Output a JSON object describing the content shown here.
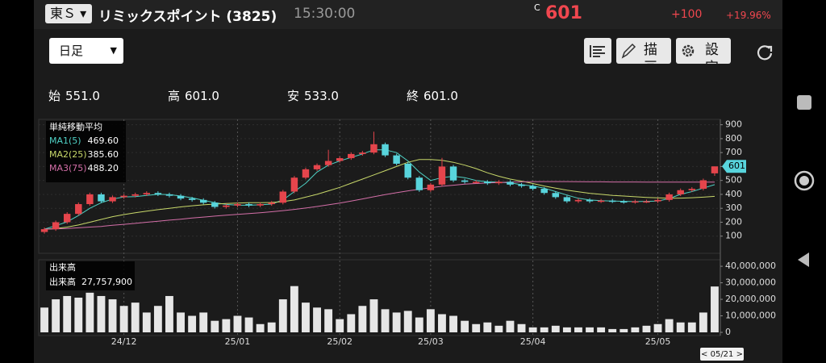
{
  "header": {
    "exchange": "東Ｓ",
    "title": "リミックスポイント (3825)",
    "time": "15:30:00",
    "price_flag": "C",
    "price": "601",
    "change": "+100",
    "change_pct": "+19.96%"
  },
  "toolbar": {
    "period": "日足",
    "draw": "描画",
    "settings": "設定"
  },
  "ohlc": [
    {
      "label": "始",
      "value": "551.0"
    },
    {
      "label": "高",
      "value": "601.0"
    },
    {
      "label": "安",
      "value": "533.0"
    },
    {
      "label": "終",
      "value": "601.0"
    }
  ],
  "chart_data": {
    "type": "candlestick",
    "legend_title": "単純移動平均",
    "up_color": "#e5454c",
    "down_color": "#58d4dc",
    "categories": [
      null,
      null,
      null,
      null,
      null,
      null,
      null,
      "24/12",
      null,
      null,
      null,
      null,
      null,
      null,
      null,
      null,
      null,
      "25/01",
      null,
      null,
      null,
      null,
      null,
      null,
      null,
      null,
      "25/02",
      null,
      null,
      null,
      null,
      null,
      null,
      null,
      "25/03",
      null,
      null,
      null,
      null,
      null,
      null,
      null,
      null,
      "25/04",
      null,
      null,
      null,
      null,
      null,
      null,
      null,
      null,
      null,
      null,
      "25/05",
      null,
      null,
      null,
      null,
      null
    ],
    "open": [
      130,
      150,
      200,
      260,
      330,
      400,
      350,
      380,
      390,
      400,
      410,
      400,
      390,
      370,
      360,
      340,
      310,
      320,
      330,
      320,
      330,
      340,
      420,
      520,
      580,
      610,
      640,
      660,
      690,
      700,
      760,
      680,
      620,
      520,
      430,
      470,
      600,
      500,
      490,
      490,
      480,
      490,
      470,
      460,
      440,
      410,
      380,
      350,
      360,
      350,
      355,
      350,
      345,
      350,
      350,
      360,
      400,
      430,
      440,
      551
    ],
    "high": [
      162,
      212,
      272,
      342,
      412,
      412,
      392,
      402,
      412,
      422,
      422,
      412,
      402,
      382,
      372,
      352,
      332,
      342,
      342,
      342,
      352,
      432,
      532,
      592,
      622,
      720,
      672,
      702,
      712,
      850,
      772,
      692,
      632,
      532,
      482,
      662,
      612,
      512,
      502,
      502,
      502,
      502,
      482,
      472,
      452,
      422,
      392,
      372,
      372,
      367,
      367,
      362,
      362,
      362,
      372,
      412,
      442,
      452,
      513,
      601
    ],
    "low": [
      118,
      138,
      188,
      248,
      318,
      338,
      338,
      368,
      378,
      388,
      388,
      378,
      358,
      348,
      328,
      298,
      298,
      308,
      308,
      308,
      318,
      328,
      408,
      508,
      568,
      598,
      628,
      648,
      678,
      688,
      668,
      608,
      508,
      418,
      418,
      458,
      488,
      478,
      478,
      468,
      468,
      458,
      448,
      428,
      398,
      368,
      338,
      338,
      338,
      338,
      338,
      333,
      333,
      338,
      338,
      348,
      388,
      418,
      428,
      533
    ],
    "close": [
      150,
      200,
      260,
      330,
      400,
      350,
      380,
      390,
      400,
      410,
      400,
      390,
      370,
      360,
      340,
      310,
      320,
      330,
      320,
      330,
      340,
      420,
      520,
      580,
      610,
      640,
      660,
      690,
      700,
      760,
      680,
      620,
      520,
      430,
      470,
      600,
      500,
      490,
      490,
      480,
      490,
      470,
      460,
      440,
      410,
      380,
      350,
      360,
      350,
      355,
      350,
      345,
      350,
      350,
      360,
      400,
      430,
      440,
      501,
      601
    ],
    "series": [
      {
        "name": "MA1(5)",
        "color": "#4fd1c5",
        "legend_value": "469.60",
        "values": [
          150,
          175,
          203,
          248,
          300,
          340,
          366,
          382,
          384,
          392,
          400,
          398,
          388,
          375,
          358,
          340,
          328,
          322,
          322,
          325,
          330,
          360,
          420,
          480,
          560,
          610,
          640,
          665,
          690,
          720,
          720,
          700,
          640,
          560,
          500,
          520,
          530,
          520,
          500,
          490,
          488,
          482,
          470,
          460,
          445,
          420,
          395,
          372,
          360,
          355,
          352,
          350,
          348,
          350,
          352,
          370,
          400,
          420,
          445,
          469.6
        ]
      },
      {
        "name": "MA2(25)",
        "color": "#c8d86a",
        "legend_value": "385.60",
        "values": [
          150,
          155,
          165,
          180,
          200,
          220,
          240,
          255,
          268,
          280,
          290,
          300,
          310,
          318,
          325,
          330,
          335,
          338,
          340,
          340,
          342,
          348,
          360,
          380,
          400,
          425,
          450,
          480,
          510,
          540,
          570,
          600,
          630,
          650,
          650,
          645,
          630,
          610,
          585,
          555,
          530,
          510,
          495,
          478,
          460,
          445,
          430,
          418,
          408,
          400,
          393,
          388,
          383,
          378,
          375,
          372,
          373,
          376,
          380,
          385.6
        ]
      },
      {
        "name": "MA3(75)",
        "color": "#d46fa8",
        "legend_value": "488.20",
        "values": [
          150,
          152,
          155,
          160,
          165,
          170,
          178,
          185,
          192,
          200,
          207,
          215,
          222,
          230,
          237,
          244,
          250,
          256,
          262,
          268,
          275,
          283,
          292,
          302,
          313,
          325,
          338,
          352,
          367,
          383,
          398,
          412,
          425,
          437,
          448,
          458,
          466,
          473,
          478,
          482,
          485,
          488,
          490,
          491,
          492,
          492,
          492,
          491,
          490,
          490,
          489,
          489,
          489,
          488,
          488,
          488,
          488,
          488,
          488,
          488.2
        ]
      }
    ],
    "ylim": [
      0,
      950
    ],
    "yticks": [
      100,
      200,
      300,
      400,
      500,
      600,
      700,
      800,
      900
    ],
    "grid": true,
    "last_price": 601,
    "cursor_date": "< 05/21 >",
    "volume": {
      "title": "出来高",
      "label": "出来高",
      "current_label": "27,757,900",
      "color": "#e6e6e6",
      "values": [
        15000000,
        20000000,
        22000000,
        21000000,
        24000000,
        22000000,
        20000000,
        16000000,
        18000000,
        12000000,
        16000000,
        22000000,
        12000000,
        10000000,
        12000000,
        7000000,
        8000000,
        10000000,
        9000000,
        5000000,
        6000000,
        20000000,
        28000000,
        18000000,
        15000000,
        14000000,
        8000000,
        11000000,
        16000000,
        20000000,
        14000000,
        12000000,
        13000000,
        9000000,
        14000000,
        11000000,
        10000000,
        7000000,
        5000000,
        6000000,
        4000000,
        7000000,
        5000000,
        3000000,
        3000000,
        4000000,
        3000000,
        3000000,
        3000000,
        3000000,
        2000000,
        2000000,
        3000000,
        4000000,
        5000000,
        8000000,
        6000000,
        6000000,
        12000000,
        27757900
      ],
      "ylim": [
        0,
        42000000
      ],
      "yticks": [
        0,
        {
          "value": 10000000,
          "label": "10,000,000"
        },
        {
          "value": 20000000,
          "label": "20,000,000"
        },
        {
          "value": 30000000,
          "label": "30,000,000"
        },
        {
          "value": 40000000,
          "label": "40,000,000"
        }
      ]
    }
  }
}
